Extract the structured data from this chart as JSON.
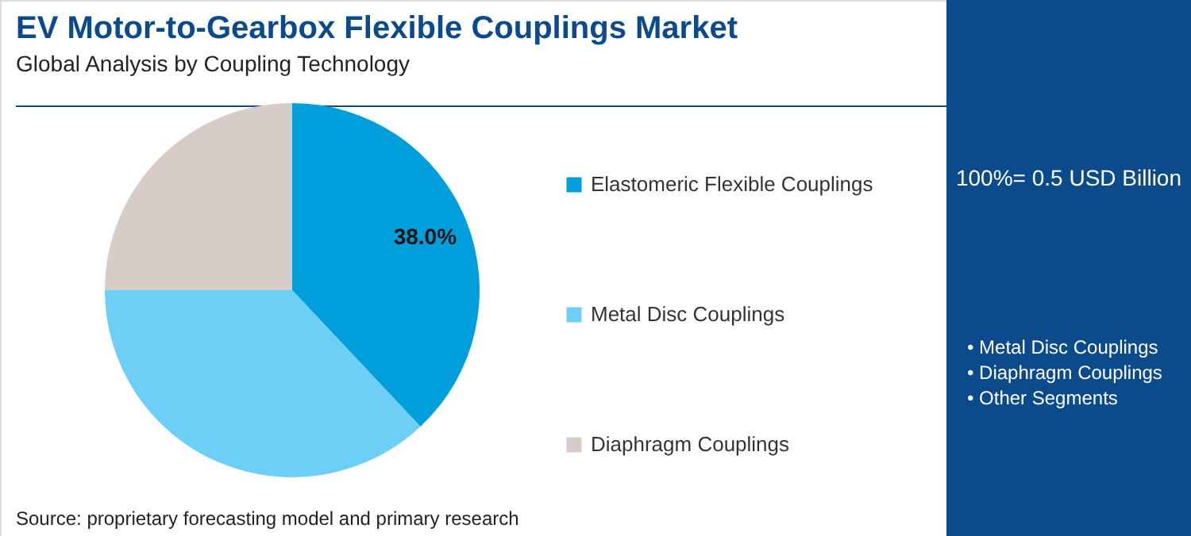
{
  "chart_data": {
    "type": "pie",
    "title": "EV Motor-to-Gearbox Flexible Couplings Market",
    "subtitle": "Global Analysis by Coupling Technology",
    "categories": [
      "Elastomeric Flexible Couplings",
      "Metal Disc Couplings",
      "Diaphragm Couplings"
    ],
    "values": [
      38.0,
      37,
      25
    ],
    "colors": [
      "#009fdb",
      "#6dcff6",
      "#d6cdc8"
    ],
    "value_labels": [
      "38.0%",
      null,
      null
    ],
    "legend": "right",
    "annotations": [
      "100%= 0.5 USD Billion",
      "• Metal Disc Couplings",
      "• Diaphragm Couplings",
      "• Other Segments",
      "Source: proprietary forecasting model and primary research"
    ]
  }
}
